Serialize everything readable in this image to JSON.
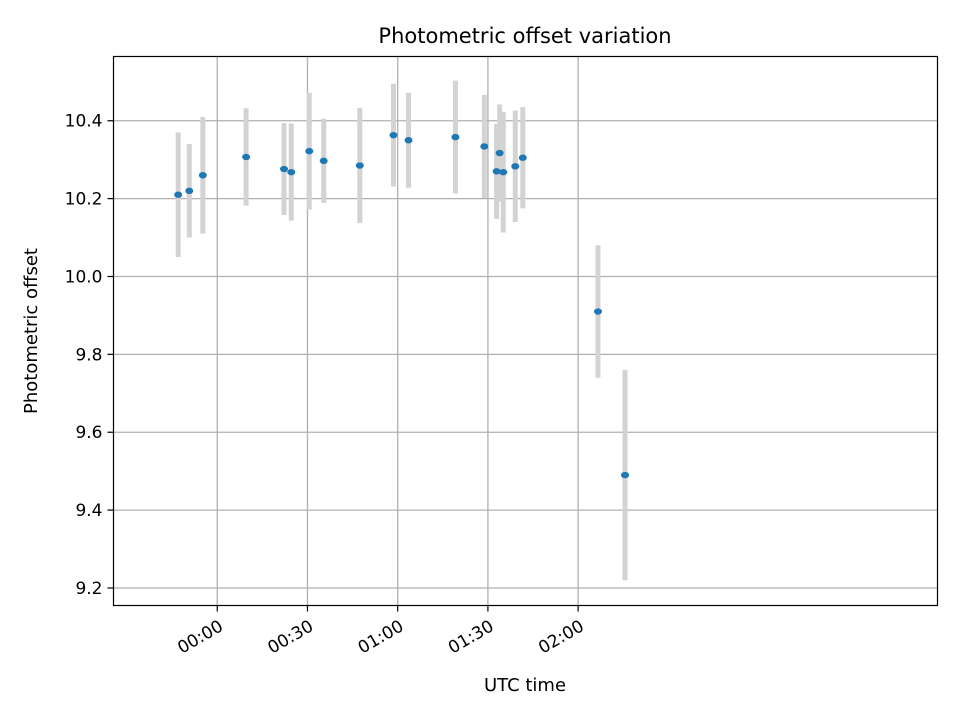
{
  "chart_data": {
    "type": "scatter",
    "title": "Photometric offset variation",
    "xlabel": "UTC time",
    "ylabel": "Photometric offset",
    "x_unit": "minutes relative to 00:00 UTC",
    "xlim": [
      -34.5,
      239.5
    ],
    "ylim": [
      9.155,
      10.565
    ],
    "grid": true,
    "x_ticks": [
      {
        "value": 0,
        "label": "00:00"
      },
      {
        "value": 30,
        "label": "00:30"
      },
      {
        "value": 60,
        "label": "01:00"
      },
      {
        "value": 90,
        "label": "01:30"
      },
      {
        "value": 120,
        "label": "02:00"
      }
    ],
    "y_ticks": [
      {
        "value": 9.2,
        "label": "9.2"
      },
      {
        "value": 9.4,
        "label": "9.4"
      },
      {
        "value": 9.6,
        "label": "9.6"
      },
      {
        "value": 9.8,
        "label": "9.8"
      },
      {
        "value": 10.0,
        "label": "10.0"
      },
      {
        "value": 10.2,
        "label": "10.2"
      },
      {
        "value": 10.4,
        "label": "10.4"
      }
    ],
    "colors": {
      "point": "#1f77b4",
      "errorbar": "#d3d3d3",
      "grid": "#b0b0b0"
    },
    "points": [
      {
        "x": -13.0,
        "y": 10.21,
        "yerr": 0.16
      },
      {
        "x": -9.3,
        "y": 10.22,
        "yerr": 0.12
      },
      {
        "x": -4.8,
        "y": 10.26,
        "yerr": 0.15
      },
      {
        "x": 9.6,
        "y": 10.307,
        "yerr": 0.125
      },
      {
        "x": 22.2,
        "y": 10.276,
        "yerr": 0.118
      },
      {
        "x": 24.6,
        "y": 10.268,
        "yerr": 0.125
      },
      {
        "x": 30.6,
        "y": 10.322,
        "yerr": 0.15
      },
      {
        "x": 35.4,
        "y": 10.297,
        "yerr": 0.108
      },
      {
        "x": 47.4,
        "y": 10.285,
        "yerr": 0.148
      },
      {
        "x": 58.6,
        "y": 10.363,
        "yerr": 0.132
      },
      {
        "x": 63.6,
        "y": 10.35,
        "yerr": 0.122
      },
      {
        "x": 79.2,
        "y": 10.358,
        "yerr": 0.145
      },
      {
        "x": 88.8,
        "y": 10.334,
        "yerr": 0.132
      },
      {
        "x": 92.9,
        "y": 10.27,
        "yerr": 0.122
      },
      {
        "x": 93.9,
        "y": 10.317,
        "yerr": 0.125
      },
      {
        "x": 95.1,
        "y": 10.268,
        "yerr": 0.155
      },
      {
        "x": 99.1,
        "y": 10.283,
        "yerr": 0.143
      },
      {
        "x": 101.6,
        "y": 10.305,
        "yerr": 0.13
      },
      {
        "x": 126.6,
        "y": 9.91,
        "yerr": 0.17
      },
      {
        "x": 135.6,
        "y": 9.49,
        "yerr": 0.27
      }
    ]
  }
}
